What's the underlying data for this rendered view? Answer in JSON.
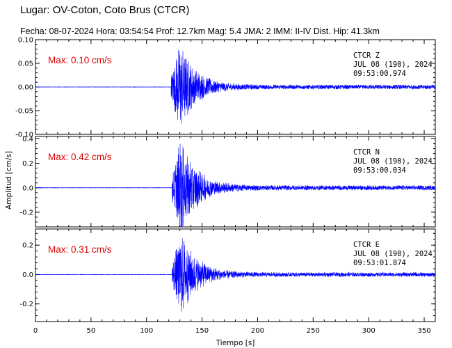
{
  "header": {
    "title": "Lugar: OV-Coton, Coto Brus (CTCR)",
    "subtitle": "Fecha: 08-07-2024 Hora: 03:54:54 Prof: 12.7km Mag: 5.4    JMA:  2 IMM: II-IV Dist. Hip: 41.3km"
  },
  "chart_data": {
    "type": "line",
    "xlabel": "Tiempo [s]",
    "ylabel": "Amplitud [cm/s]",
    "xlim": [
      0,
      360
    ],
    "xticks": [
      0,
      50,
      100,
      150,
      200,
      250,
      300,
      350
    ],
    "x_tick_labels": [
      "0",
      "50",
      "100",
      "150",
      "200",
      "250",
      "300",
      "350"
    ],
    "grid": false,
    "trace_color": "#0000ff",
    "max_color": "#e00000",
    "series": [
      {
        "max_label": "Max: 0.10 cm/s",
        "peak": 0.1,
        "onset": 122,
        "station_label": "CTCR   Z",
        "date_label": "JUL 08 (190), 2024",
        "time_label": "09:53:00.974",
        "ylim": [
          -0.1,
          0.1
        ],
        "yticks": [
          -0.1,
          -0.05,
          0.0,
          0.05,
          0.1
        ],
        "y_tick_labels": [
          "-0.10",
          "-0.05",
          "0.00",
          "0.05",
          "0.10"
        ]
      },
      {
        "max_label": "Max: 0.42 cm/s",
        "peak": 0.42,
        "onset": 123,
        "station_label": "CTCR   N",
        "date_label": "JUL 08 (190), 2024",
        "time_label": "09:53:00.034",
        "ylim": [
          -0.32,
          0.42
        ],
        "yticks": [
          -0.2,
          0.0,
          0.2,
          0.4
        ],
        "y_tick_labels": [
          "-0.2",
          "0.0",
          "0.2",
          "0.4"
        ]
      },
      {
        "max_label": "Max: 0.31 cm/s",
        "peak": 0.31,
        "onset": 123,
        "station_label": "CTCR   E",
        "date_label": "JUL 08 (190), 2024",
        "time_label": "09:53:01.874",
        "ylim": [
          -0.32,
          0.31
        ],
        "yticks": [
          -0.2,
          0.0,
          0.2
        ],
        "y_tick_labels": [
          "-0.2",
          "0.0",
          "0.2"
        ]
      }
    ]
  }
}
